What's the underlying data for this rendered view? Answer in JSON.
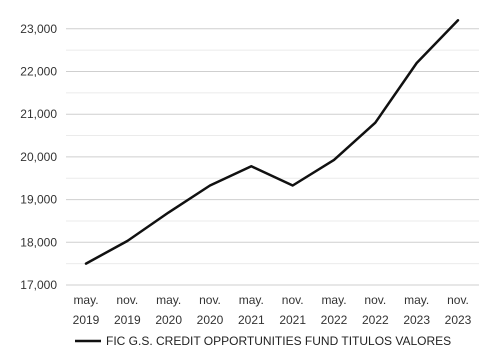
{
  "chart_data": {
    "type": "line",
    "title": "",
    "xlabel": "",
    "ylabel": "",
    "x": [
      "may. 2019",
      "nov. 2019",
      "may. 2020",
      "nov. 2020",
      "may. 2021",
      "nov. 2021",
      "may. 2022",
      "nov. 2022",
      "may. 2023",
      "nov. 2023"
    ],
    "x_tick_labels": [
      {
        "top": "may.",
        "bottom": "2019"
      },
      {
        "top": "nov.",
        "bottom": "2019"
      },
      {
        "top": "may.",
        "bottom": "2020"
      },
      {
        "top": "nov.",
        "bottom": "2020"
      },
      {
        "top": "may.",
        "bottom": "2021"
      },
      {
        "top": "nov.",
        "bottom": "2021"
      },
      {
        "top": "may.",
        "bottom": "2022"
      },
      {
        "top": "nov.",
        "bottom": "2022"
      },
      {
        "top": "may.",
        "bottom": "2023"
      },
      {
        "top": "nov.",
        "bottom": "2023"
      }
    ],
    "y_ticks": [
      {
        "value": 17000,
        "label": "17,000"
      },
      {
        "value": 18000,
        "label": "18,000"
      },
      {
        "value": 19000,
        "label": "19,000"
      },
      {
        "value": 20000,
        "label": "20,000"
      },
      {
        "value": 21000,
        "label": "21,000"
      },
      {
        "value": 22000,
        "label": "22,000"
      },
      {
        "value": 23000,
        "label": "23,000"
      }
    ],
    "ylim": [
      17000,
      23400
    ],
    "grid": true,
    "legend_position": "bottom",
    "series": [
      {
        "name": "FIC G.S. CREDIT OPPORTUNITIES FUND TITULOS VALORES",
        "color": "#111111",
        "points": [
          {
            "x": "may. 2019",
            "y": 17500
          },
          {
            "x": "nov. 2019",
            "y": 18030
          },
          {
            "x": "may. 2020",
            "y": 18700
          },
          {
            "x": "nov. 2020",
            "y": 19330
          },
          {
            "x": "may. 2021",
            "y": 19780
          },
          {
            "x": "nov. 2021",
            "y": 19330
          },
          {
            "x": "may. 2022",
            "y": 19930
          },
          {
            "x": "nov. 2022",
            "y": 20800
          },
          {
            "x": "may. 2023",
            "y": 22200
          },
          {
            "x": "nov. 2023",
            "y": 23200
          }
        ]
      }
    ]
  }
}
